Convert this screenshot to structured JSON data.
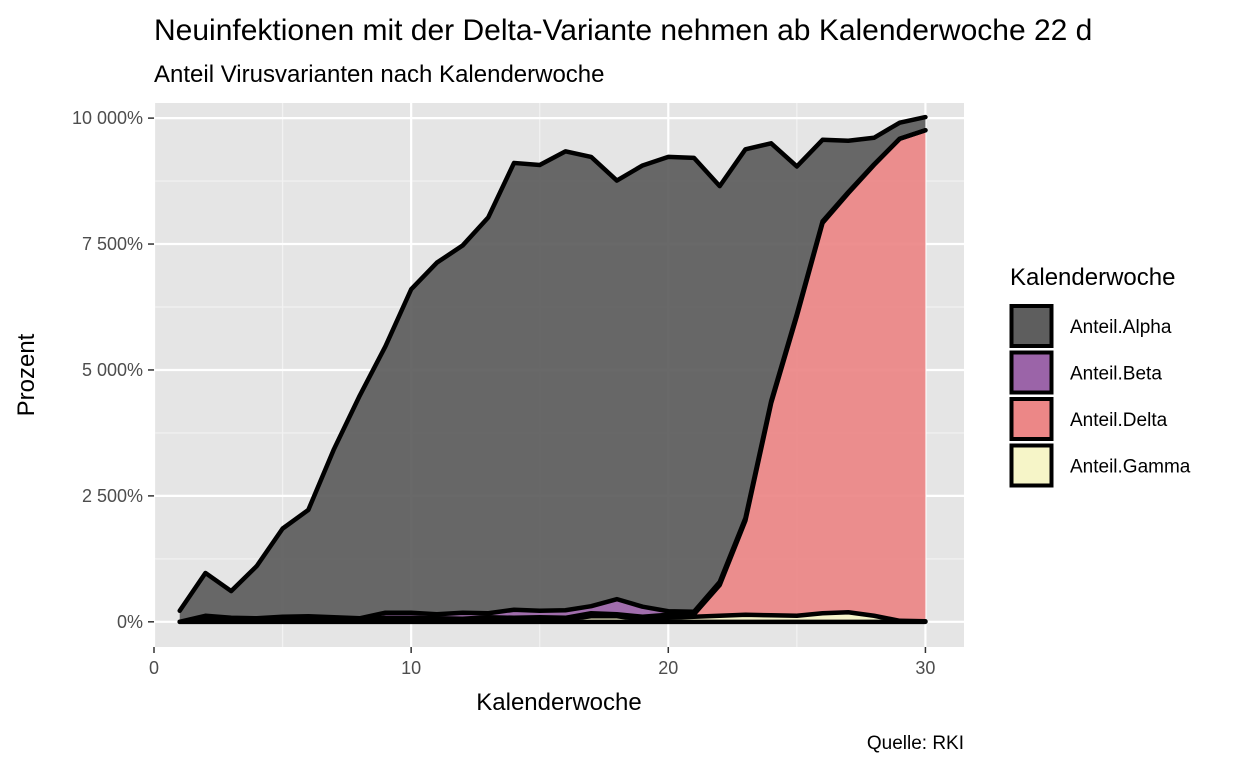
{
  "chart_data": {
    "type": "area",
    "stacked": true,
    "title": "Neuinfektionen mit der Delta-Variante nehmen ab Kalenderwoche 22 d",
    "subtitle": "Anteil Virusvarianten nach Kalenderwoche",
    "xlabel": "Kalenderwoche",
    "ylabel": "Prozent",
    "caption": "Quelle: RKI",
    "legend_title": "Kalenderwoche",
    "legend_position": "right",
    "grid": true,
    "xlim": [
      0,
      31.5
    ],
    "ylim": [
      -500,
      10300
    ],
    "x_ticks": [
      0,
      10,
      20,
      30
    ],
    "x_tick_labels": [
      "0",
      "10",
      "20",
      "30"
    ],
    "y_ticks": [
      0,
      2500,
      5000,
      7500,
      10000
    ],
    "y_tick_labels": [
      "0%",
      "2 500%",
      "5 000%",
      "7 500%",
      "10 000%"
    ],
    "x": [
      1,
      2,
      3,
      4,
      5,
      6,
      7,
      8,
      9,
      10,
      11,
      12,
      13,
      14,
      15,
      16,
      17,
      18,
      19,
      20,
      21,
      22,
      23,
      24,
      25,
      26,
      27,
      28,
      29,
      30
    ],
    "series": [
      {
        "name": "Anteil.Alpha",
        "color": "#5e5e5e",
        "values": [
          220,
          850,
          530,
          1040,
          1750,
          2110,
          3340,
          4420,
          5290,
          6420,
          6980,
          7290,
          7860,
          8870,
          8850,
          9110,
          8920,
          8310,
          8760,
          9020,
          9010,
          7860,
          7320,
          5120,
          2930,
          1620,
          1020,
          530,
          320,
          260
        ]
      },
      {
        "name": "Anteil.Beta",
        "color": "#9b64a8",
        "values": [
          0,
          70,
          50,
          40,
          50,
          40,
          30,
          30,
          100,
          100,
          80,
          120,
          80,
          160,
          130,
          150,
          140,
          300,
          200,
          70,
          50,
          60,
          50,
          40,
          40,
          30,
          20,
          10,
          0,
          0
        ]
      },
      {
        "name": "Anteil.Delta",
        "color": "#ec8787",
        "values": [
          0,
          20,
          10,
          10,
          20,
          20,
          20,
          30,
          40,
          40,
          50,
          40,
          60,
          40,
          50,
          30,
          60,
          40,
          50,
          60,
          50,
          610,
          1870,
          4210,
          5950,
          7750,
          8320,
          8950,
          9570,
          9750
        ]
      },
      {
        "name": "Anteil.Gamma",
        "color": "#f6f5c8",
        "values": [
          0,
          30,
          20,
          20,
          30,
          50,
          40,
          10,
          40,
          40,
          20,
          20,
          30,
          40,
          40,
          50,
          110,
          110,
          50,
          80,
          100,
          120,
          140,
          130,
          120,
          170,
          190,
          120,
          20,
          10
        ]
      }
    ]
  }
}
